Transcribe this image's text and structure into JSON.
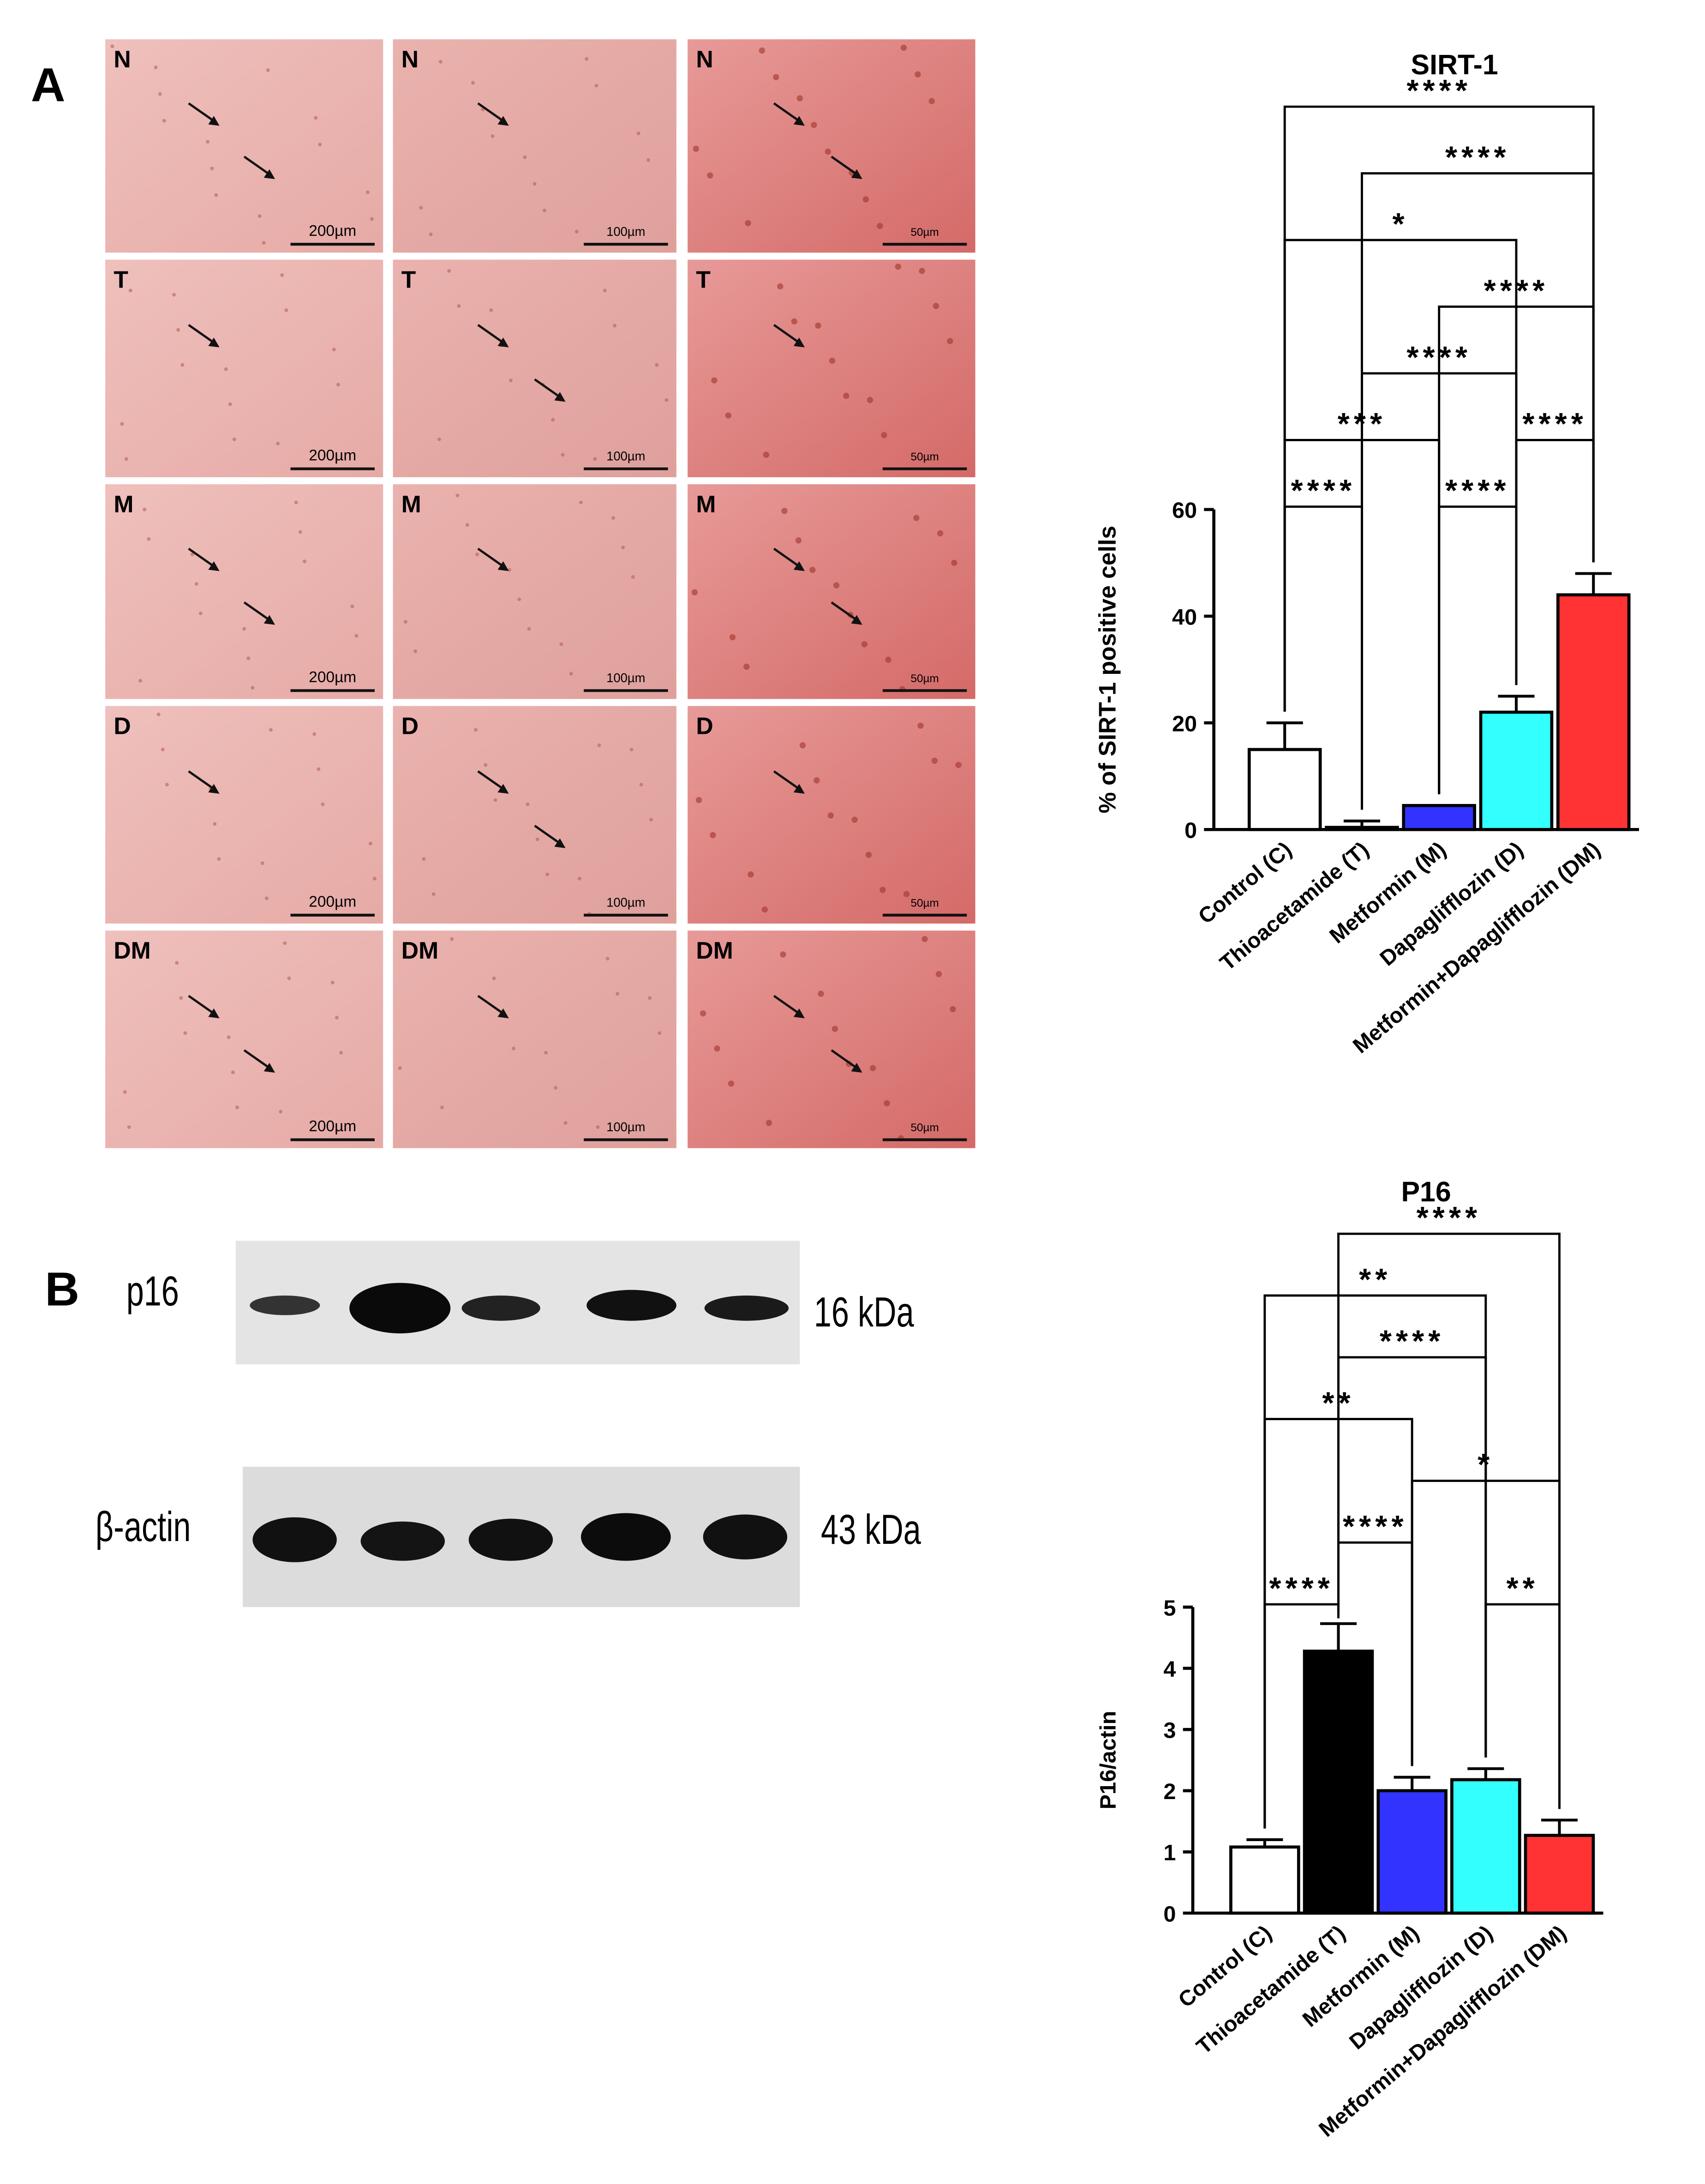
{
  "figure": {
    "panel_a": "A",
    "panel_b": "B",
    "micrographs": {
      "rows": [
        "N",
        "T",
        "M",
        "D",
        "DM"
      ],
      "scale_bars": [
        "200µm",
        "100µm",
        "50µm"
      ]
    },
    "blot": {
      "p16_label": "p16",
      "p16_size": "16 kDa",
      "actin_label": "β-actin",
      "actin_size": "43 kDa"
    }
  },
  "chart_data": [
    {
      "type": "bar",
      "title": "SIRT-1",
      "y_label": "% of SIRT-1 positive cells",
      "categories": [
        "Control (C)",
        "Thioacetamide (T)",
        "Metformin (M)",
        "Dapaglifflozin (D)",
        "Metformin+Dapaglifflozin (DM)"
      ],
      "values": [
        15,
        0.4,
        4.5,
        22,
        44
      ],
      "errors": [
        5,
        1.2,
        0,
        3,
        4
      ],
      "colors": [
        "#ffffff",
        "#ffffff",
        "#3333ff",
        "#33ffff",
        "#ff3333"
      ],
      "ylim": [
        0,
        60
      ],
      "yticks": [
        0,
        20,
        40,
        60
      ],
      "comparisons": [
        {
          "from": 0,
          "to": 1,
          "label": "****"
        },
        {
          "from": 2,
          "to": 3,
          "label": "****"
        },
        {
          "from": 3,
          "to": 4,
          "label": "****"
        },
        {
          "from": 0,
          "to": 2,
          "label": "***"
        },
        {
          "from": 1,
          "to": 3,
          "label": "****"
        },
        {
          "from": 2,
          "to": 4,
          "label": "****"
        },
        {
          "from": 0,
          "to": 3,
          "label": "*"
        },
        {
          "from": 1,
          "to": 4,
          "label": "****"
        },
        {
          "from": 0,
          "to": 4,
          "label": "****"
        }
      ]
    },
    {
      "type": "bar",
      "title": "P16",
      "y_label": "P16/actin",
      "categories": [
        "Control (C)",
        "Thioacetamide (T)",
        "Metformin (M)",
        "Dapaglifflozin (D)",
        "Metformin+Dapaglifflozin (DM)"
      ],
      "values": [
        1.08,
        4.28,
        2.0,
        2.18,
        1.27
      ],
      "errors": [
        0.12,
        0.45,
        0.22,
        0.18,
        0.25
      ],
      "colors": [
        "#ffffff",
        "#000000",
        "#3333ff",
        "#33ffff",
        "#ff3333"
      ],
      "ylim": [
        0,
        5
      ],
      "yticks": [
        0,
        1,
        2,
        3,
        4,
        5
      ],
      "comparisons": [
        {
          "from": 0,
          "to": 1,
          "label": "****"
        },
        {
          "from": 3,
          "to": 4,
          "label": "**"
        },
        {
          "from": 1,
          "to": 2,
          "label": "****"
        },
        {
          "from": 2,
          "to": 4,
          "label": "*"
        },
        {
          "from": 0,
          "to": 2,
          "label": "**"
        },
        {
          "from": 1,
          "to": 3,
          "label": "****"
        },
        {
          "from": 0,
          "to": 3,
          "label": "**"
        },
        {
          "from": 1,
          "to": 4,
          "label": "****"
        }
      ]
    }
  ]
}
